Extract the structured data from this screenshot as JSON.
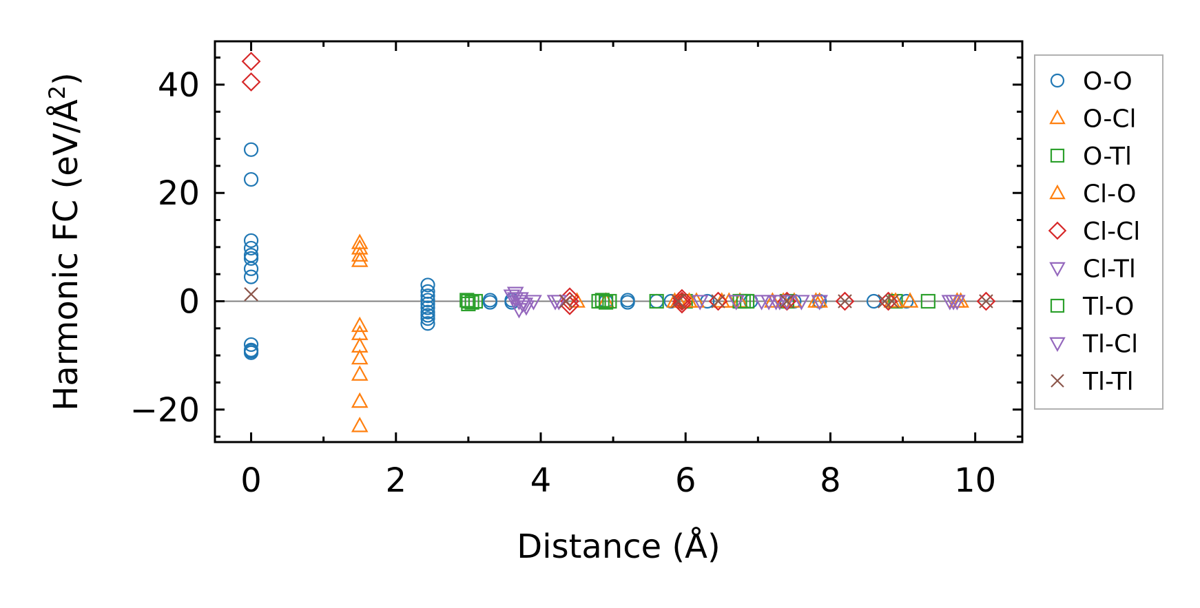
{
  "chart_data": {
    "type": "scatter",
    "xlabel": "Distance (Å)",
    "ylabel": "Harmonic FC (eV/Å",
    "ylabel_sup": "2",
    "ylabel_close": ")",
    "xlim": [
      -0.5,
      10.65
    ],
    "ylim": [
      -26,
      48
    ],
    "x_ticks": [
      0,
      2,
      4,
      6,
      8,
      10
    ],
    "y_ticks": [
      -20,
      0,
      20,
      40
    ],
    "x_tick_labels": [
      "0",
      "2",
      "4",
      "6",
      "8",
      "10"
    ],
    "y_tick_labels": [
      "−20",
      "0",
      "20",
      "40"
    ],
    "zero_line": true,
    "grid": false,
    "legend_position": "outside-right",
    "series": [
      {
        "name": "O-O",
        "marker": "circle",
        "color": "#1f77b4",
        "x": [
          0,
          0,
          0,
          0,
          0,
          0,
          0,
          0,
          0,
          0,
          0,
          0,
          2.44,
          2.44,
          2.44,
          2.44,
          2.44,
          2.44,
          2.44,
          2.44,
          2.44,
          2.44,
          3.3,
          3.3,
          3.6,
          3.6,
          4.9,
          5.2,
          5.2,
          5.6,
          5.8,
          6.3,
          6.9,
          7.5,
          7.85,
          8.6,
          9.05
        ],
        "y": [
          28,
          22.5,
          11.2,
          9.8,
          8.5,
          7.9,
          6,
          4.5,
          -8,
          -9,
          -9.5,
          -9.2,
          3,
          1.8,
          1,
          0.2,
          -0.5,
          -1.2,
          -2,
          -2.6,
          -3.2,
          -4.1,
          0.2,
          -0.2,
          0.2,
          -0.2,
          0,
          0.2,
          -0.2,
          0,
          0,
          0,
          0,
          0,
          0,
          0,
          0
        ]
      },
      {
        "name": "O-Cl",
        "marker": "triangle-up",
        "color": "#ff7f0e",
        "x": [
          1.5,
          1.5,
          1.5,
          1.5,
          1.5,
          1.5,
          1.5,
          1.5,
          1.5,
          1.5,
          1.5,
          4.5,
          4.9,
          5.85,
          6.15,
          6.5,
          6.75,
          7.2,
          7.5,
          7.8,
          8.85,
          9.1,
          9.8
        ],
        "y": [
          10.8,
          9.8,
          8.5,
          7.5,
          -4.5,
          -6,
          -8.3,
          -10.5,
          -13.5,
          -18.5,
          -23,
          0,
          0,
          0,
          0,
          0,
          0,
          0,
          0,
          0,
          0,
          0,
          0
        ]
      },
      {
        "name": "O-Tl",
        "marker": "square",
        "color": "#2ca02c",
        "x": [
          2.98,
          3.05,
          3.1,
          3.0,
          4.85,
          4.9,
          4.95,
          5.6,
          6.0,
          6.8,
          7.4,
          8.9,
          9.35
        ],
        "y": [
          0.2,
          -0.2,
          0,
          -0.5,
          0.2,
          -0.2,
          0,
          0,
          0,
          0,
          0,
          0,
          0
        ]
      },
      {
        "name": "Cl-O",
        "marker": "triangle-up",
        "color": "#ff7f0e",
        "x": [
          5.9,
          6.05,
          6.6,
          7.35,
          7.85,
          8.9,
          9.75
        ],
        "y": [
          0,
          0,
          0,
          0,
          0,
          0,
          0
        ]
      },
      {
        "name": "Cl-Cl",
        "marker": "diamond",
        "color": "#d62728",
        "x": [
          0,
          0,
          4.4,
          4.4,
          4.4,
          5.95,
          5.95,
          5.95,
          6.45,
          7.4,
          8.2,
          8.8,
          10.15
        ],
        "y": [
          44.3,
          40.5,
          0.8,
          0,
          -0.8,
          0.5,
          0,
          -0.5,
          0,
          0,
          0,
          0,
          0
        ]
      },
      {
        "name": "Cl-Tl",
        "marker": "triangle-down",
        "color": "#9467bd",
        "x": [
          3.6,
          3.65,
          3.7,
          3.75,
          3.8,
          3.65,
          3.7,
          3.9,
          4.25,
          6.2,
          7.05,
          7.25,
          7.4,
          7.6,
          7.85,
          9.65,
          9.75
        ],
        "y": [
          1,
          0.5,
          0,
          -0.5,
          -1,
          1.5,
          -1.5,
          0,
          0,
          0,
          0,
          0,
          0,
          0,
          0,
          0,
          0
        ]
      },
      {
        "name": "Tl-O",
        "marker": "square",
        "color": "#2ca02c",
        "x": [
          3.0,
          4.8,
          6.75,
          6.85
        ],
        "y": [
          0,
          0,
          0,
          0
        ]
      },
      {
        "name": "Tl-Cl",
        "marker": "triangle-down",
        "color": "#9467bd",
        "x": [
          3.72,
          3.78,
          4.2,
          6.7,
          7.15,
          7.3,
          9.7
        ],
        "y": [
          0.5,
          -0.5,
          0,
          0,
          0,
          0,
          0
        ]
      },
      {
        "name": "Tl-Tl",
        "marker": "x",
        "color": "#8c564b",
        "x": [
          0,
          4.35,
          5.9,
          6.45,
          7.4,
          8.2,
          8.75,
          8.85,
          10.15
        ],
        "y": [
          1.3,
          0,
          0,
          0,
          0,
          0,
          0,
          0,
          0
        ]
      }
    ]
  }
}
